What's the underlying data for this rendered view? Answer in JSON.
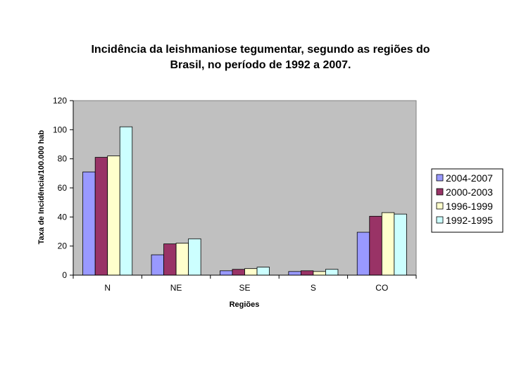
{
  "chart_data": {
    "type": "bar",
    "title": "Incidência da leishmaniose tegumentar, segundo as regiões do Brasil, no período de 1992 a 2007.",
    "title_lines": [
      "Incidência da leishmaniose tegumentar, segundo as regiões do",
      "Brasil, no período de 1992 a 2007."
    ],
    "xlabel": "Regiões",
    "ylabel": "Taxa de Incidência/100.000 hab",
    "categories": [
      "N",
      "NE",
      "SE",
      "S",
      "CO"
    ],
    "ylim": [
      0,
      120
    ],
    "yticks": [
      0,
      20,
      40,
      60,
      80,
      100,
      120
    ],
    "grid": false,
    "legend_position": "right",
    "plot_background": "#c0c0c0",
    "series": [
      {
        "name": "2004-2007",
        "color": "#9999ff",
        "values": [
          71,
          14,
          3,
          2.5,
          29.5
        ]
      },
      {
        "name": "2000-2003",
        "color": "#993366",
        "values": [
          81,
          21.5,
          4,
          3,
          40.5
        ]
      },
      {
        "name": "1996-1999",
        "color": "#ffffcc",
        "values": [
          82,
          22,
          4.5,
          2.5,
          43
        ]
      },
      {
        "name": "1992-1995",
        "color": "#ccffff",
        "values": [
          102,
          25,
          5.5,
          4,
          42
        ]
      }
    ]
  }
}
